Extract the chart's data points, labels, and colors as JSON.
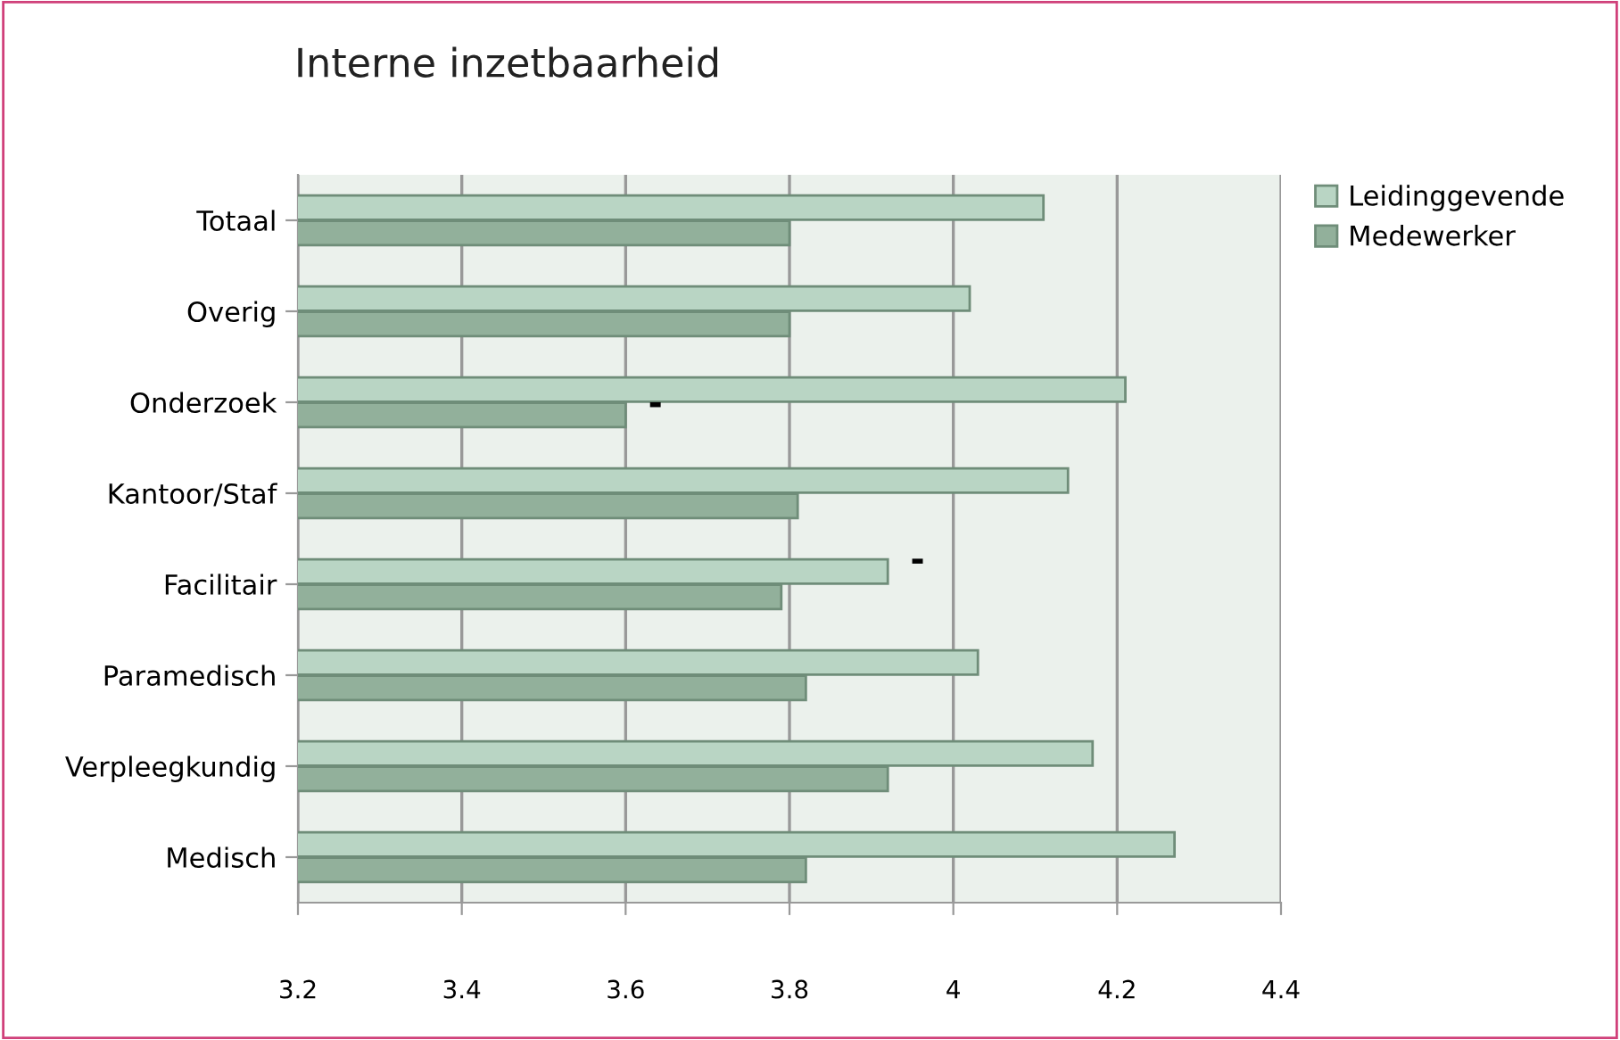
{
  "chart_data": {
    "type": "bar",
    "orientation": "horizontal",
    "title": "Interne inzetbaarheid",
    "categories": [
      "Totaal",
      "Overig",
      "Onderzoek",
      "Kantoor/Staf",
      "Facilitair",
      "Paramedisch",
      "Verpleegkundig",
      "Medisch"
    ],
    "series": [
      {
        "name": "Leidinggevende",
        "color": "#b9d5c4",
        "values": [
          4.11,
          4.02,
          4.21,
          4.14,
          3.92,
          4.03,
          4.17,
          4.27
        ]
      },
      {
        "name": "Medewerker",
        "color": "#92b09b",
        "values": [
          3.8,
          3.8,
          3.6,
          3.81,
          3.79,
          3.82,
          3.92,
          3.82
        ]
      }
    ],
    "xlim": [
      3.2,
      4.4
    ],
    "xticks": [
      3.2,
      3.4,
      3.6,
      3.8,
      4,
      4.2,
      4.4
    ],
    "grid": "x",
    "legend": "top right",
    "annotations": [
      {
        "text": "-",
        "x": 3.6,
        "y": "Onderzoek"
      },
      {
        "text": "-",
        "x": 3.92,
        "y": "Facilitair"
      }
    ]
  }
}
